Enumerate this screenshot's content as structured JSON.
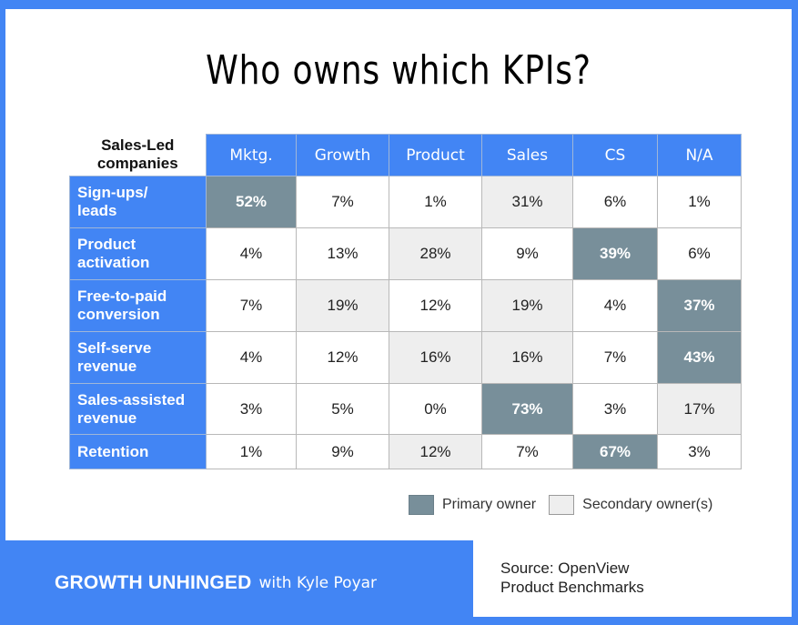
{
  "title": "Who owns which KPIs?",
  "table": {
    "corner_label_line1": "Sales-Led",
    "corner_label_line2": "companies",
    "columns": [
      "Mktg.",
      "Growth",
      "Product",
      "Sales",
      "CS",
      "N/A"
    ],
    "rows": [
      {
        "label_line1": "Sign-ups/",
        "label_line2": "leads",
        "values": [
          "52%",
          "7%",
          "1%",
          "31%",
          "6%",
          "1%"
        ],
        "status": [
          "primary",
          "",
          "",
          "secondary",
          "",
          ""
        ]
      },
      {
        "label_line1": "Product",
        "label_line2": "activation",
        "values": [
          "4%",
          "13%",
          "28%",
          "9%",
          "39%",
          "6%"
        ],
        "status": [
          "",
          "",
          "secondary",
          "",
          "primary",
          ""
        ]
      },
      {
        "label_line1": "Free-to-paid",
        "label_line2": "conversion",
        "values": [
          "7%",
          "19%",
          "12%",
          "19%",
          "4%",
          "37%"
        ],
        "status": [
          "",
          "secondary",
          "",
          "secondary",
          "",
          "primary"
        ]
      },
      {
        "label_line1": "Self-serve",
        "label_line2": "revenue",
        "values": [
          "4%",
          "12%",
          "16%",
          "16%",
          "7%",
          "43%"
        ],
        "status": [
          "",
          "",
          "secondary",
          "secondary",
          "",
          "primary"
        ]
      },
      {
        "label_line1": "Sales-assisted",
        "label_line2": "revenue",
        "values": [
          "3%",
          "5%",
          "0%",
          "73%",
          "3%",
          "17%"
        ],
        "status": [
          "",
          "",
          "",
          "primary",
          "",
          "secondary"
        ]
      },
      {
        "label_line1": "Retention",
        "label_line2": "",
        "values": [
          "1%",
          "9%",
          "12%",
          "7%",
          "67%",
          "3%"
        ],
        "status": [
          "",
          "",
          "secondary",
          "",
          "primary",
          ""
        ]
      }
    ]
  },
  "legend": {
    "primary_label": "Primary owner",
    "secondary_label": "Secondary owner(s)"
  },
  "footer": {
    "brand": "GROWTH UNHINGED",
    "brand_sub": "with Kyle Poyar",
    "source_line1": "Source: OpenView",
    "source_line2": "Product Benchmarks"
  },
  "colors": {
    "brand_blue": "#4285f4",
    "primary_owner": "#788f9a",
    "secondary_owner": "#eeeeee"
  },
  "chart_data": {
    "type": "table",
    "title": "Who owns which KPIs?",
    "subtitle": "Sales-Led companies",
    "columns": [
      "Mktg.",
      "Growth",
      "Product",
      "Sales",
      "CS",
      "N/A"
    ],
    "rows": [
      "Sign-ups/leads",
      "Product activation",
      "Free-to-paid conversion",
      "Self-serve revenue",
      "Sales-assisted revenue",
      "Retention"
    ],
    "values": [
      [
        52,
        7,
        1,
        31,
        6,
        1
      ],
      [
        4,
        13,
        28,
        9,
        39,
        6
      ],
      [
        7,
        19,
        12,
        19,
        4,
        37
      ],
      [
        4,
        12,
        16,
        16,
        7,
        43
      ],
      [
        3,
        5,
        0,
        73,
        3,
        17
      ],
      [
        1,
        9,
        12,
        7,
        67,
        3
      ]
    ],
    "unit": "%",
    "primary_owner": [
      "Mktg.",
      "CS",
      "N/A",
      "N/A",
      "Sales",
      "CS"
    ],
    "legend": [
      "Primary owner",
      "Secondary owner(s)"
    ],
    "source": "Source: OpenView Product Benchmarks"
  }
}
